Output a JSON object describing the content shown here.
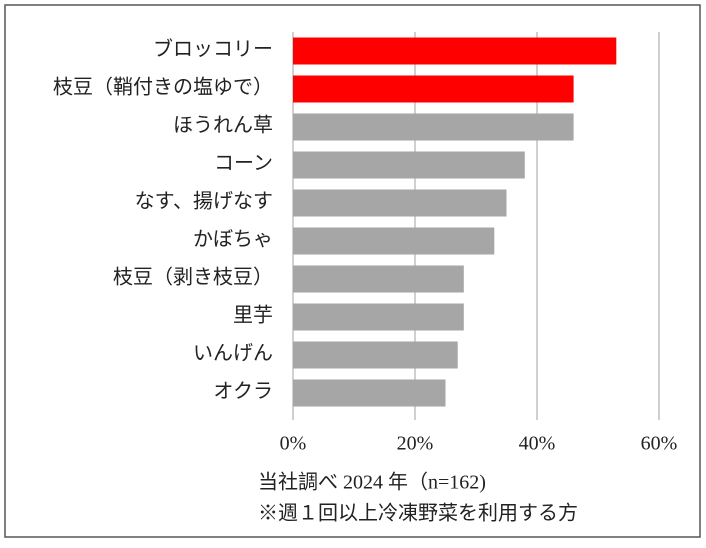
{
  "chart_data": {
    "type": "barh",
    "categories": [
      "ブロッコリー",
      "枝豆（鞘付きの塩ゆで）",
      "ほうれん草",
      "コーン",
      "なす、揚げなす",
      "かぼちゃ",
      "枝豆（剥き枝豆）",
      "里芋",
      "いんげん",
      "オクラ"
    ],
    "values": [
      53,
      46,
      46,
      38,
      35,
      33,
      28,
      28,
      27,
      25
    ],
    "colors": [
      "#ff0000",
      "#ff0000",
      "#a6a6a6",
      "#a6a6a6",
      "#a6a6a6",
      "#a6a6a6",
      "#a6a6a6",
      "#a6a6a6",
      "#a6a6a6",
      "#a6a6a6"
    ],
    "xlim": [
      0,
      60
    ],
    "xticks": [
      {
        "value": 0,
        "label": "0%"
      },
      {
        "value": 20,
        "label": "20%"
      },
      {
        "value": 40,
        "label": "40%"
      },
      {
        "value": 60,
        "label": "60%"
      }
    ],
    "grid": true,
    "notes": [
      "当社調べ 2024 年（n=162)",
      "※週１回以上冷凍野菜を利用する方"
    ]
  }
}
